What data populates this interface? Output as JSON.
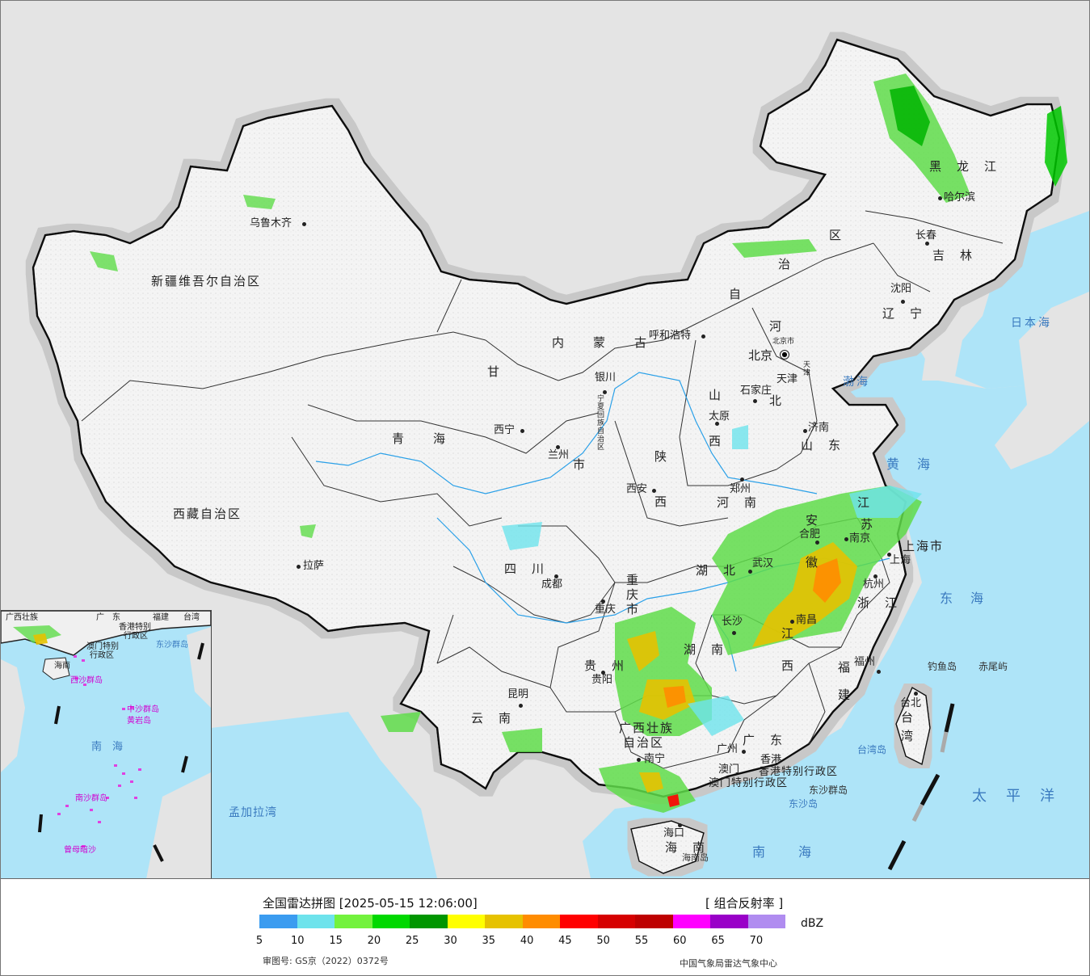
{
  "map": {
    "provinces": [
      {
        "id": "xinjiang",
        "label": "新疆维吾尔自治区"
      },
      {
        "id": "xizang",
        "label": "西藏自治区"
      },
      {
        "id": "qinghai",
        "label": "青　　海"
      },
      {
        "id": "gansu",
        "label": "甘"
      },
      {
        "id": "neimenggu",
        "label": "内　　蒙　　古"
      },
      {
        "id": "neimenggu2",
        "label": "自"
      },
      {
        "id": "neimenggu3",
        "label": "治"
      },
      {
        "id": "neimenggu4",
        "label": "区"
      },
      {
        "id": "heilongjiang",
        "label": "黑　龙　江"
      },
      {
        "id": "jilin",
        "label": "吉　林"
      },
      {
        "id": "liaoning",
        "label": "辽　宁"
      },
      {
        "id": "hebei",
        "label": "河"
      },
      {
        "id": "hebei2",
        "label": "北"
      },
      {
        "id": "shanxi",
        "label": "山"
      },
      {
        "id": "shanxi2",
        "label": "西"
      },
      {
        "id": "shandong",
        "label": "山　东"
      },
      {
        "id": "henan",
        "label": "河　南"
      },
      {
        "id": "shaanxi",
        "label": "陕"
      },
      {
        "id": "shaanxi2",
        "label": "西"
      },
      {
        "id": "sichuan",
        "label": "四　川"
      },
      {
        "id": "chongqing",
        "label": "重庆市"
      },
      {
        "id": "hubei",
        "label": "湖　北"
      },
      {
        "id": "hunan",
        "label": "湖　南"
      },
      {
        "id": "anhui",
        "label": "安"
      },
      {
        "id": "anhui2",
        "label": "徽"
      },
      {
        "id": "jiangsu",
        "label": "江"
      },
      {
        "id": "jiangsu2",
        "label": "苏"
      },
      {
        "id": "shanghai",
        "label": "上海市"
      },
      {
        "id": "zhejiang",
        "label": "浙　江"
      },
      {
        "id": "jiangxi",
        "label": "江"
      },
      {
        "id": "jiangxi2",
        "label": "西"
      },
      {
        "id": "fujian",
        "label": "福"
      },
      {
        "id": "fujian2",
        "label": "建"
      },
      {
        "id": "guizhou",
        "label": "贵　州"
      },
      {
        "id": "yunnan",
        "label": "云　南"
      },
      {
        "id": "guangxi",
        "label": "广西壮族"
      },
      {
        "id": "guangxi2",
        "label": "自治区"
      },
      {
        "id": "guangdong",
        "label": "广　东"
      },
      {
        "id": "hainan",
        "label": "海　南"
      },
      {
        "id": "taiwan",
        "label": "台"
      },
      {
        "id": "taiwan2",
        "label": "湾"
      },
      {
        "id": "ningxia",
        "label": "宁夏回族自治区"
      },
      {
        "id": "ningxia_sh",
        "label": "市"
      },
      {
        "id": "hk_sar",
        "label": "香港特别行政区"
      },
      {
        "id": "mo_sar",
        "label": "澳门特别行政区"
      }
    ],
    "cities": [
      {
        "id": "urumqi",
        "label": "乌鲁木齐"
      },
      {
        "id": "lhasa",
        "label": "拉萨"
      },
      {
        "id": "xining",
        "label": "西宁"
      },
      {
        "id": "lanzhou",
        "label": "兰州"
      },
      {
        "id": "yinchuan",
        "label": "银川"
      },
      {
        "id": "hohhot",
        "label": "呼和浩特"
      },
      {
        "id": "beijing",
        "label": "北京"
      },
      {
        "id": "beijingcity",
        "label": "北京市"
      },
      {
        "id": "tianjin",
        "label": "天津"
      },
      {
        "id": "tianjincity",
        "label": "天津"
      },
      {
        "id": "shijiazhuang",
        "label": "石家庄"
      },
      {
        "id": "taiyuan",
        "label": "太原"
      },
      {
        "id": "jinan",
        "label": "济南"
      },
      {
        "id": "zhengzhou",
        "label": "郑州"
      },
      {
        "id": "xian",
        "label": "西安"
      },
      {
        "id": "chengdu",
        "label": "成都"
      },
      {
        "id": "chongqingcity",
        "label": "重庆"
      },
      {
        "id": "wuhan",
        "label": "武汉"
      },
      {
        "id": "changsha",
        "label": "长沙"
      },
      {
        "id": "hefei",
        "label": "合肥"
      },
      {
        "id": "nanjing",
        "label": "南京"
      },
      {
        "id": "shanghaicity",
        "label": "上海"
      },
      {
        "id": "hangzhou",
        "label": "杭州"
      },
      {
        "id": "nanchang",
        "label": "南昌"
      },
      {
        "id": "fuzhou",
        "label": "福州"
      },
      {
        "id": "guiyang",
        "label": "贵阳"
      },
      {
        "id": "kunming",
        "label": "昆明"
      },
      {
        "id": "nanning",
        "label": "南宁"
      },
      {
        "id": "guangzhou",
        "label": "广州"
      },
      {
        "id": "hongkong",
        "label": "香港"
      },
      {
        "id": "macau",
        "label": "澳门"
      },
      {
        "id": "haikou",
        "label": "海口"
      },
      {
        "id": "taipei",
        "label": "台北"
      },
      {
        "id": "harbin",
        "label": "哈尔滨"
      },
      {
        "id": "changchun",
        "label": "长春"
      },
      {
        "id": "shenyang",
        "label": "沈阳"
      }
    ],
    "seas": [
      {
        "id": "riben",
        "label": "日本海"
      },
      {
        "id": "bohai",
        "label": "渤海"
      },
      {
        "id": "huanghai",
        "label": "黄　海"
      },
      {
        "id": "donghai",
        "label": "东　海"
      },
      {
        "id": "taipingyang",
        "label": "太　平　洋"
      },
      {
        "id": "nanhai",
        "label": "南　　海"
      },
      {
        "id": "mengjiala",
        "label": "孟加拉湾"
      }
    ],
    "islands": [
      {
        "id": "diaoyu",
        "label": "钓鱼岛"
      },
      {
        "id": "chiwei",
        "label": "赤尾屿"
      },
      {
        "id": "taiwanisland",
        "label": "台湾岛"
      },
      {
        "id": "dongsha_qd",
        "label": "东沙群岛"
      },
      {
        "id": "dongsha_d",
        "label": "东沙岛"
      },
      {
        "id": "hainanisland",
        "label": "海南岛"
      }
    ],
    "inset_labels": [
      {
        "id": "in_gx",
        "label": "广西壮族"
      },
      {
        "id": "in_gd",
        "label": "广　东"
      },
      {
        "id": "in_fj",
        "label": "福建"
      },
      {
        "id": "in_tw",
        "label": "台湾"
      },
      {
        "id": "in_hk",
        "label": "香港特别"
      },
      {
        "id": "in_hk2",
        "label": "行政区"
      },
      {
        "id": "in_mo",
        "label": "澳门特别"
      },
      {
        "id": "in_mo2",
        "label": "行政区"
      },
      {
        "id": "in_hn",
        "label": "海南"
      },
      {
        "id": "in_dongsha",
        "label": "东沙群岛"
      },
      {
        "id": "in_xisha",
        "label": "西沙群岛"
      },
      {
        "id": "in_zhongsha",
        "label": "中沙群岛"
      },
      {
        "id": "in_huangyan",
        "label": "黄岩岛"
      },
      {
        "id": "in_nanhai",
        "label": "南　海"
      },
      {
        "id": "in_nansha",
        "label": "南沙群岛"
      },
      {
        "id": "in_zengmu",
        "label": "曾母暗沙"
      }
    ]
  },
  "legend": {
    "title": "全国雷达拼图 [2025-05-15 12:06:00]",
    "product": "[ 组合反射率 ]",
    "unit": "dBZ",
    "colors": [
      "#3b9cf0",
      "#6ee3ec",
      "#73f23d",
      "#00d800",
      "#009600",
      "#ffff00",
      "#e6c200",
      "#ff8c00",
      "#ff0000",
      "#d60000",
      "#be0000",
      "#ff00ff",
      "#9900c8",
      "#b08cf0"
    ],
    "ticks": [
      "5",
      "10",
      "15",
      "20",
      "25",
      "30",
      "35",
      "40",
      "45",
      "50",
      "55",
      "60",
      "65",
      "70"
    ],
    "review_no": "审图号: GS京（2022）0372号",
    "producer": "中国气象局雷达气象中心"
  }
}
